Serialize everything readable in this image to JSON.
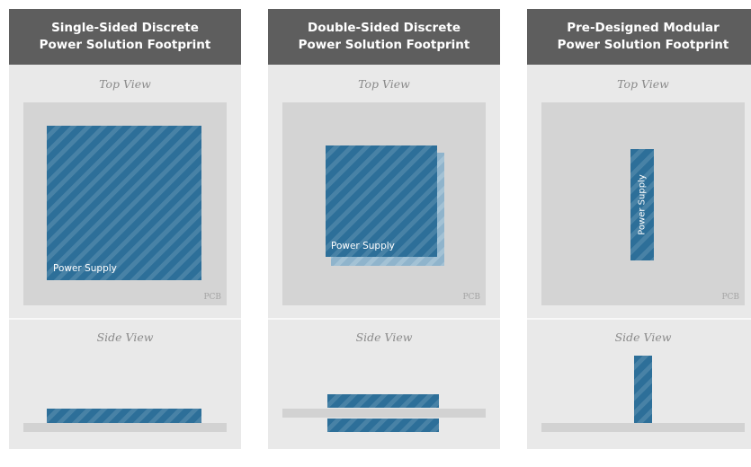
{
  "panels": [
    {
      "title_line1": "Single-Sided Discrete",
      "title_line2": "Power Solution Footprint",
      "top_view_label": "Top View",
      "side_view_label": "Side View",
      "pcb_label": "PCB",
      "power_supply_label": "Power Supply"
    },
    {
      "title_line1": "Double-Sided Discrete",
      "title_line2": "Power Solution Footprint",
      "top_view_label": "Top View",
      "side_view_label": "Side View",
      "pcb_label": "PCB",
      "power_supply_label": "Power Supply"
    },
    {
      "title_line1": "Pre-Designed Modular",
      "title_line2": "Power Solution Footprint",
      "top_view_label": "Top View",
      "side_view_label": "Side View",
      "pcb_label": "PCB",
      "power_supply_label": "Power Supply"
    }
  ],
  "colors": {
    "header": "#5e5e5e",
    "panel": "#e9e9e9",
    "pcb": "#d4d4d4",
    "power_supply": "#2d6f99",
    "power_supply_back": "#8fb4cc"
  }
}
